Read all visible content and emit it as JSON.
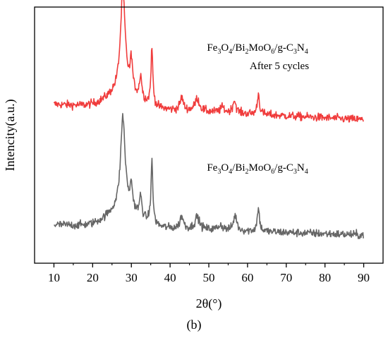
{
  "chart_data": {
    "type": "line",
    "panel_label": "(b)",
    "xlabel": "2θ(°)",
    "ylabel": "Intencity(a.u.)",
    "xlim": [
      5,
      95
    ],
    "x_ticks": [
      10,
      20,
      30,
      40,
      50,
      60,
      70,
      80,
      90
    ],
    "y_ticks_labeled": false,
    "grid": false,
    "legend": "none",
    "series": [
      {
        "label_lines": [
          {
            "segments": [
              [
                "Fe",
                ""
              ],
              [
                "3",
                "sub"
              ],
              [
                "O",
                ""
              ],
              [
                "4",
                "sub"
              ],
              [
                "/Bi",
                ""
              ],
              [
                "2",
                "sub"
              ],
              [
                "MoO",
                ""
              ],
              [
                "6",
                "sub"
              ],
              [
                "/g-C",
                ""
              ],
              [
                "3",
                "sub"
              ],
              [
                "N",
                ""
              ],
              [
                "4",
                "sub"
              ]
            ]
          },
          {
            "segments": [
              [
                "After 5 cycles",
                ""
              ]
            ]
          }
        ],
        "color": "#f03c3c",
        "baseline": 0.56,
        "peaks": [
          [
            27.8,
            0.39,
            0.75
          ],
          [
            30.0,
            0.12,
            0.35
          ],
          [
            32.4,
            0.09,
            0.35
          ],
          [
            35.3,
            0.22,
            0.3
          ],
          [
            43.0,
            0.05,
            0.5
          ],
          [
            47.0,
            0.05,
            0.7
          ],
          [
            53.5,
            0.02,
            0.6
          ],
          [
            56.6,
            0.05,
            0.5
          ],
          [
            62.8,
            0.08,
            0.35
          ]
        ],
        "humps": [
          [
            28.0,
            0.06,
            4.0
          ]
        ],
        "decay": 0.06,
        "noise": 0.008
      },
      {
        "label_lines": [
          {
            "segments": [
              [
                "Fe",
                ""
              ],
              [
                "3",
                "sub"
              ],
              [
                "O",
                ""
              ],
              [
                "4",
                "sub"
              ],
              [
                "/Bi",
                ""
              ],
              [
                "2",
                "sub"
              ],
              [
                "MoO",
                ""
              ],
              [
                "6",
                "sub"
              ],
              [
                "/g-C",
                ""
              ],
              [
                "3",
                "sub"
              ],
              [
                "N",
                ""
              ],
              [
                "4",
                "sub"
              ]
            ]
          }
        ],
        "color": "#666666",
        "baseline": 0.11,
        "peaks": [
          [
            27.8,
            0.36,
            0.7
          ],
          [
            30.0,
            0.09,
            0.35
          ],
          [
            32.4,
            0.08,
            0.35
          ],
          [
            35.3,
            0.24,
            0.3
          ],
          [
            43.0,
            0.05,
            0.5
          ],
          [
            47.0,
            0.05,
            0.7
          ],
          [
            53.0,
            0.02,
            0.7
          ],
          [
            56.8,
            0.06,
            0.5
          ],
          [
            62.8,
            0.09,
            0.35
          ]
        ],
        "humps": [
          [
            28.0,
            0.07,
            4.0
          ]
        ],
        "decay": 0.04,
        "noise": 0.008
      }
    ]
  }
}
